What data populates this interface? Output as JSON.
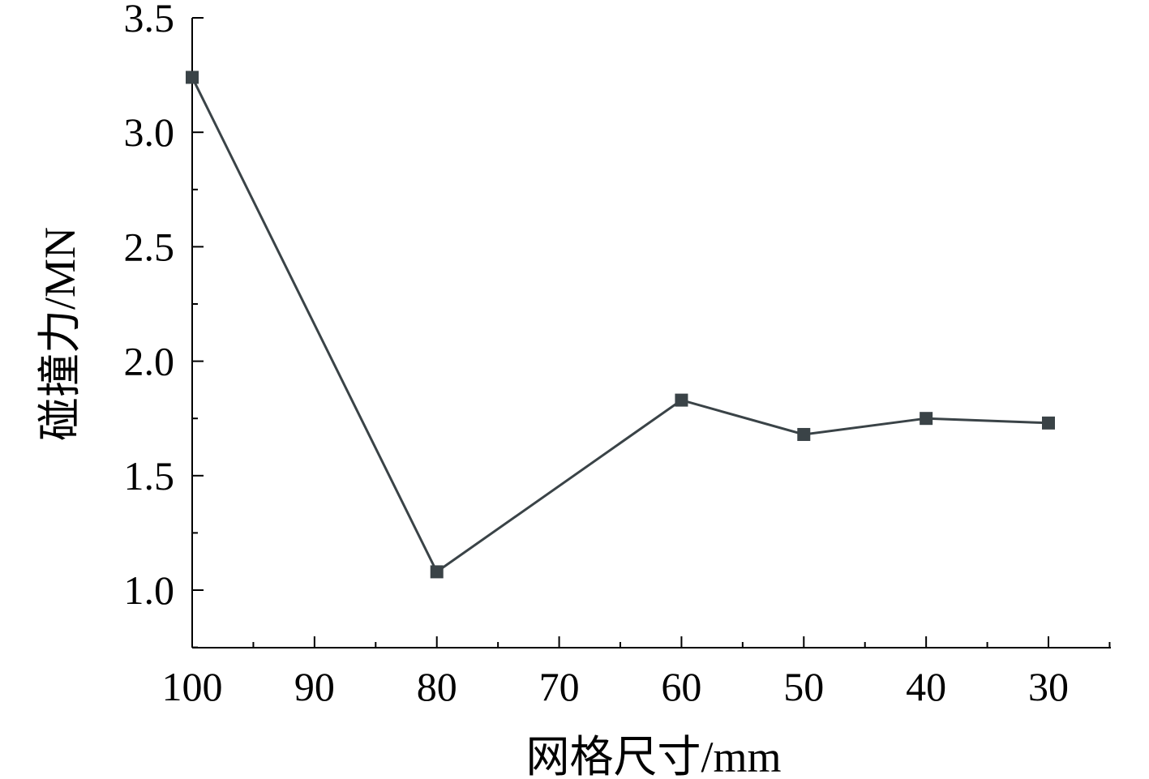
{
  "chart_data": {
    "type": "line",
    "xlabel": "网格尺寸/mm",
    "ylabel": "碰撞力/MN",
    "x": [
      100,
      80,
      60,
      50,
      40,
      30
    ],
    "series": [
      {
        "values": [
          3.24,
          1.08,
          1.83,
          1.68,
          1.75,
          1.73
        ]
      }
    ],
    "xlim": [
      100,
      25
    ],
    "ylim": [
      0.75,
      3.5
    ],
    "x_reversed": true,
    "xticks": [
      100,
      90,
      80,
      70,
      60,
      50,
      40,
      30
    ],
    "xtick_labels": [
      "100",
      "90",
      "80",
      "70",
      "60",
      "50",
      "40",
      "30"
    ],
    "yticks": [
      1.0,
      1.5,
      2.0,
      2.5,
      3.0,
      3.5
    ],
    "ytick_labels": [
      "1.0",
      "1.5",
      "2.0",
      "2.5",
      "3.0",
      "3.5"
    ],
    "marker": "square",
    "grid": false,
    "line_color": "#3a4347"
  }
}
